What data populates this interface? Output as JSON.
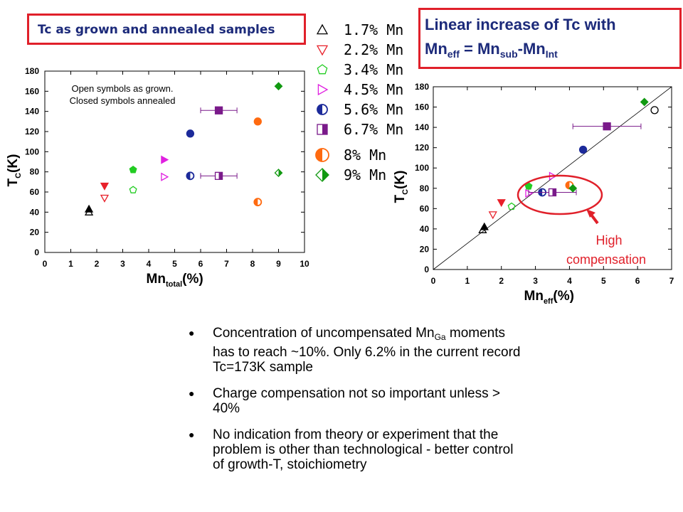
{
  "left_box_title": "Tc as grown and annealed samples",
  "right_box": {
    "line1": "Linear increase of Tc with",
    "line2_mn": "Mn",
    "line2_eff": "eff",
    "line2_eq": " = Mn",
    "line2_sub": "sub",
    "line2_dash": "-Mn",
    "line2_int": "Int"
  },
  "legend": [
    {
      "label": "1.7% Mn",
      "marker": "triangle-up",
      "color": "#000000"
    },
    {
      "label": "2.2% Mn",
      "marker": "triangle-down",
      "color": "#e8202a"
    },
    {
      "label": "3.4% Mn",
      "marker": "pentagon",
      "color": "#22cc22"
    },
    {
      "label": "4.5% Mn",
      "marker": "triangle-right",
      "color": "#e020e0"
    },
    {
      "label": "5.6% Mn",
      "marker": "half-circle",
      "color": "#1c2a9a"
    },
    {
      "label": "6.7% Mn",
      "marker": "half-square",
      "color": "#7a1a8a"
    },
    {
      "label": "8% Mn",
      "marker": "half-circle",
      "color": "#ff6a10"
    },
    {
      "label": "9% Mn",
      "marker": "half-diamond",
      "color": "#119911"
    }
  ],
  "chart_data": [
    {
      "type": "scatter",
      "annotation": "Open symbols as grown.\nClosed symbols annealed",
      "annotation_lines": [
        "Open symbols as grown.",
        "Closed symbols annealed"
      ],
      "xlabel": "Mn",
      "xlabel_sub": "total",
      "xlabel_unit": "(%)",
      "ylabel": "T",
      "ylabel_sub": "C",
      "ylabel_unit": "(K)",
      "xlim": [
        0,
        10
      ],
      "ylim": [
        0,
        180
      ],
      "xticks": [
        "0",
        "1",
        "2",
        "3",
        "4",
        "5",
        "6",
        "7",
        "8",
        "9",
        "10"
      ],
      "yticks": [
        "0",
        "20",
        "40",
        "60",
        "80",
        "100",
        "120",
        "140",
        "160",
        "180"
      ],
      "series": [
        {
          "name": "1.7% Mn",
          "points": [
            [
              1.7,
              43,
              "closed"
            ],
            [
              1.7,
              40,
              "open"
            ]
          ]
        },
        {
          "name": "2.2% Mn",
          "points": [
            [
              2.3,
              66,
              "closed"
            ],
            [
              2.3,
              54,
              "open"
            ]
          ]
        },
        {
          "name": "3.4% Mn",
          "points": [
            [
              3.4,
              82,
              "closed"
            ],
            [
              3.4,
              62,
              "open"
            ]
          ]
        },
        {
          "name": "4.5% Mn",
          "points": [
            [
              4.6,
              92,
              "closed"
            ],
            [
              4.6,
              75,
              "open"
            ]
          ]
        },
        {
          "name": "5.6% Mn",
          "points": [
            [
              5.6,
              118,
              "closed"
            ],
            [
              5.6,
              76,
              "open"
            ]
          ]
        },
        {
          "name": "6.7% Mn",
          "points": [
            [
              6.7,
              141,
              "closed",
              0.7
            ],
            [
              6.7,
              76,
              "open",
              0.7
            ]
          ]
        },
        {
          "name": "8% Mn",
          "points": [
            [
              8.2,
              130,
              "closed"
            ],
            [
              8.2,
              50,
              "open"
            ]
          ]
        },
        {
          "name": "9% Mn",
          "points": [
            [
              9.0,
              165,
              "closed"
            ],
            [
              9.0,
              79,
              "open"
            ]
          ]
        }
      ]
    },
    {
      "type": "scatter",
      "annotation": "High compensation",
      "annotation_lines": [
        "High",
        "compensation"
      ],
      "xlabel": "Mn",
      "xlabel_sub": "eff",
      "xlabel_unit": "(%)",
      "ylabel": "T",
      "ylabel_sub": "C",
      "ylabel_unit": "(K)",
      "xlim": [
        0,
        7
      ],
      "ylim": [
        0,
        180
      ],
      "xticks": [
        "0",
        "1",
        "2",
        "3",
        "4",
        "5",
        "6",
        "7"
      ],
      "yticks": [
        "0",
        "20",
        "40",
        "60",
        "80",
        "100",
        "120",
        "140",
        "160",
        "180"
      ],
      "fit_line": [
        [
          0,
          0
        ],
        [
          7,
          180
        ]
      ],
      "series": [
        {
          "name": "1.7% Mn",
          "points": [
            [
              1.5,
              42,
              "closed"
            ],
            [
              1.45,
              39,
              "open"
            ]
          ]
        },
        {
          "name": "2.2% Mn",
          "points": [
            [
              2.0,
              66,
              "closed"
            ],
            [
              1.75,
              54,
              "open"
            ]
          ]
        },
        {
          "name": "3.4% Mn",
          "points": [
            [
              2.8,
              82,
              "closed"
            ],
            [
              2.3,
              62,
              "open"
            ]
          ]
        },
        {
          "name": "4.5% Mn",
          "points": [
            [
              3.5,
              92,
              "open"
            ],
            [
              2.8,
              75,
              "open"
            ]
          ]
        },
        {
          "name": "5.6% Mn",
          "points": [
            [
              4.4,
              118,
              "closed"
            ],
            [
              3.2,
              76,
              "open"
            ]
          ]
        },
        {
          "name": "6.7% Mn",
          "points": [
            [
              5.1,
              141,
              "closed",
              1.0
            ],
            [
              3.5,
              76,
              "open",
              0.7
            ]
          ]
        },
        {
          "name": "8% Mn",
          "points": [
            [
              4.0,
              83,
              "open"
            ]
          ]
        },
        {
          "name": "9% Mn",
          "points": [
            [
              6.2,
              165,
              "closed"
            ],
            [
              4.1,
              80,
              "closed"
            ]
          ]
        },
        {
          "name": "",
          "points": [
            [
              6.5,
              157,
              "open-circle"
            ]
          ]
        }
      ]
    }
  ],
  "bullets": [
    {
      "pre": "Concentration of uncompensated Mn",
      "sub": "Ga",
      "post": " moments has to reach ~10%. Only 6.2% in the current record Tc=173K sample"
    },
    {
      "pre": "Charge compensation not so important unless > 40%",
      "sub": "",
      "post": ""
    },
    {
      "pre": "No indication from theory or experiment that the problem is other than technological - better control of growth-T, stoichiometry",
      "sub": "",
      "post": ""
    }
  ]
}
